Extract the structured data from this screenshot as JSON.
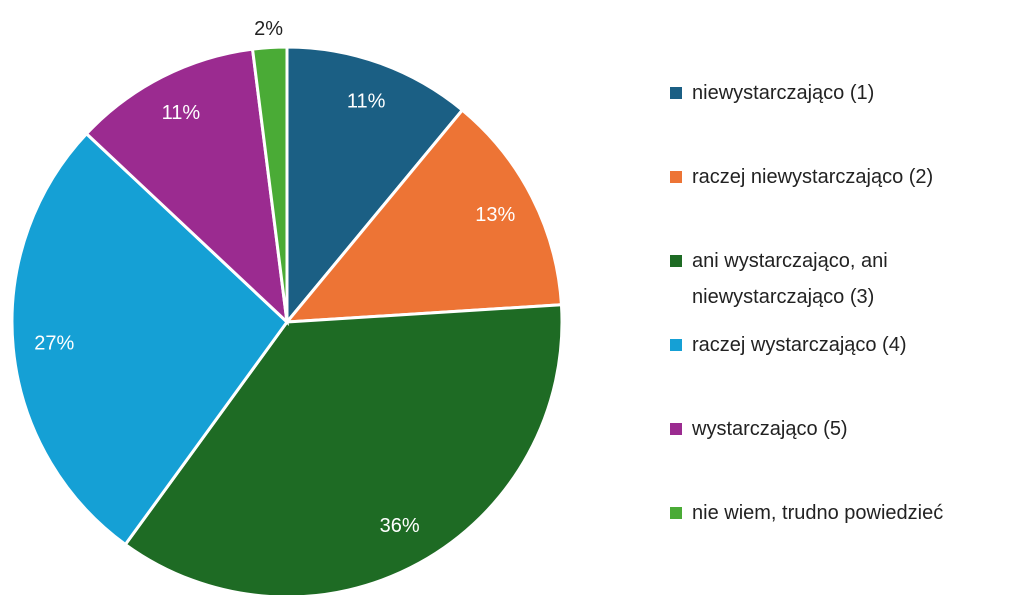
{
  "chart_data": {
    "type": "pie",
    "categories": [
      "niewystarczająco (1)",
      "raczej niewystarczająco (2)",
      "ani wystarczająco, ani niewystarczająco (3)",
      "raczej wystarczająco (4)",
      "wystarczająco (5)",
      "nie wiem, trudno powiedzieć"
    ],
    "values": [
      11,
      13,
      36,
      27,
      11,
      2
    ],
    "value_labels": [
      "11%",
      "13%",
      "36%",
      "27%",
      "11%",
      "2%"
    ],
    "colors": [
      "#1b5f84",
      "#ed7435",
      "#1e6b24",
      "#15a0d5",
      "#9b2b90",
      "#4aab36"
    ],
    "legend": "right"
  }
}
